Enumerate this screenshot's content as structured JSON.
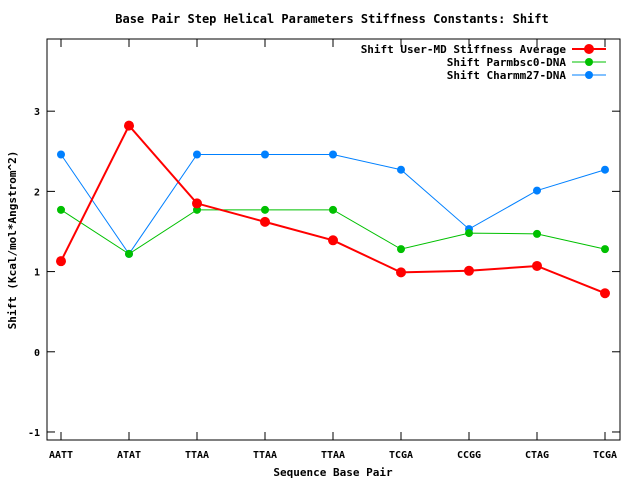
{
  "chart_data": {
    "type": "line",
    "title": "Base Pair Step Helical Parameters Stiffness Constants: Shift",
    "xlabel": "Sequence Base Pair",
    "ylabel": "Shift (Kcal/mol*Angstrom^2)",
    "categories": [
      "AATT",
      "ATAT",
      "TTAA",
      "TTAA",
      "TTAA",
      "TCGA",
      "CCGG",
      "CTAG",
      "TCGA"
    ],
    "ylim": [
      -1.1,
      3.9
    ],
    "yticks": [
      -1,
      0,
      1,
      2,
      3
    ],
    "grid": false,
    "legend_position": "top-right",
    "series": [
      {
        "name": "Shift User-MD Stiffness Average",
        "color": "#ff0000",
        "values": [
          1.13,
          2.82,
          1.85,
          1.62,
          1.39,
          0.99,
          1.01,
          1.07,
          0.73
        ]
      },
      {
        "name": "Shift Parmbsc0-DNA",
        "color": "#00c000",
        "values": [
          1.77,
          1.22,
          1.77,
          1.77,
          1.77,
          1.28,
          1.48,
          1.47,
          1.28
        ]
      },
      {
        "name": "Shift Charmm27-DNA",
        "color": "#0080ff",
        "values": [
          2.46,
          1.22,
          2.46,
          2.46,
          2.46,
          2.27,
          1.53,
          2.01,
          2.27
        ]
      }
    ]
  }
}
